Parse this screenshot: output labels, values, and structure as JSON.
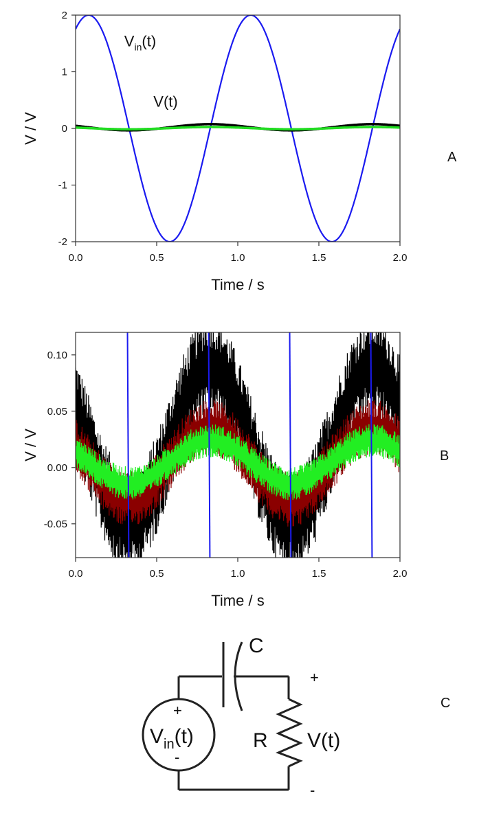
{
  "chart_data": [
    {
      "panel": "A",
      "type": "line",
      "xlabel": "Time / s",
      "ylabel": "V / V",
      "xlim": [
        0.0,
        2.0
      ],
      "ylim": [
        -2,
        2
      ],
      "x_ticks": [
        "0.0",
        "0.5",
        "1.0",
        "1.5",
        "2.0"
      ],
      "y_ticks": [
        "2",
        "1",
        "0",
        "-1",
        "-2"
      ],
      "grid": false,
      "annotations": [
        {
          "text_main": "V",
          "text_sub": "in",
          "text_tail": "(t)",
          "x": 0.3,
          "y": 1.45
        },
        {
          "text_main": "V(t)",
          "text_sub": "",
          "text_tail": "",
          "x": 0.48,
          "y": 0.38
        }
      ],
      "series": [
        {
          "color": "#1b1bf0",
          "kind": "sine",
          "amplitude": 2.0,
          "period_s": 1.0,
          "peak_at_s": 0.08,
          "offset": 0.0,
          "samples": [
            [
              0.0,
              1.86
            ],
            [
              0.08,
              2.0
            ],
            [
              0.33,
              0.0
            ],
            [
              0.58,
              -2.0
            ],
            [
              0.83,
              0.0
            ],
            [
              1.08,
              2.0
            ],
            [
              1.33,
              0.0
            ],
            [
              1.58,
              -2.0
            ],
            [
              1.83,
              0.0
            ],
            [
              2.0,
              1.76
            ]
          ]
        },
        {
          "color": "#000000",
          "kind": "sine",
          "amplitude": 0.055,
          "period_s": 1.0,
          "peak_at_s": 0.83,
          "offset": 0.02,
          "samples": [
            [
              0.0,
              0.09
            ],
            [
              0.33,
              -0.04
            ],
            [
              0.83,
              0.08
            ],
            [
              1.33,
              -0.04
            ],
            [
              1.83,
              0.08
            ],
            [
              2.0,
              0.06
            ]
          ]
        },
        {
          "color": "#22dd22",
          "kind": "sine",
          "amplitude": 0.02,
          "period_s": 1.0,
          "peak_at_s": 0.83,
          "offset": 0.005,
          "samples": [
            [
              0.0,
              0.04
            ],
            [
              0.33,
              -0.015
            ],
            [
              0.83,
              0.025
            ],
            [
              1.33,
              -0.015
            ],
            [
              1.83,
              0.025
            ],
            [
              2.0,
              0.02
            ]
          ]
        }
      ]
    },
    {
      "panel": "B",
      "type": "line",
      "xlabel": "Time / s",
      "ylabel": "V / V",
      "xlim": [
        0.0,
        2.0
      ],
      "ylim": [
        -0.08,
        0.12
      ],
      "x_ticks": [
        "0.0",
        "0.5",
        "1.0",
        "1.5",
        "2.0"
      ],
      "y_ticks": [
        "0.10",
        "0.05",
        "0.00",
        "-0.05"
      ],
      "y_tick_values": [
        0.1,
        0.05,
        0.0,
        -0.05
      ],
      "grid": false,
      "series": [
        {
          "color": "#000000",
          "kind": "noisy-sine",
          "amplitude": 0.07,
          "period_s": 1.0,
          "peak_at_s": 0.83,
          "offset": 0.02,
          "band": 0.045,
          "samples": [
            [
              0.0,
              0.12
            ],
            [
              0.33,
              -0.05
            ],
            [
              0.83,
              0.09
            ],
            [
              1.33,
              -0.05
            ],
            [
              1.83,
              0.09
            ],
            [
              2.0,
              0.04
            ]
          ]
        },
        {
          "color": "#8b0000",
          "kind": "noisy-sine",
          "amplitude": 0.032,
          "period_s": 1.0,
          "peak_at_s": 0.83,
          "offset": 0.004,
          "band": 0.025,
          "samples": [
            [
              0.0,
              0.05
            ],
            [
              0.33,
              -0.025
            ],
            [
              0.83,
              0.036
            ],
            [
              1.33,
              -0.025
            ],
            [
              1.83,
              0.036
            ],
            [
              2.0,
              0.03
            ]
          ]
        },
        {
          "color": "#22ee22",
          "kind": "noisy-sine",
          "amplitude": 0.019,
          "period_s": 1.0,
          "peak_at_s": 0.83,
          "offset": 0.005,
          "band": 0.015,
          "samples": [
            [
              0.0,
              0.03
            ],
            [
              0.33,
              -0.012
            ],
            [
              0.83,
              0.023
            ],
            [
              1.33,
              -0.012
            ],
            [
              1.83,
              0.023
            ],
            [
              2.0,
              0.018
            ]
          ]
        },
        {
          "color": "#1b1bf0",
          "kind": "vertical-crossings",
          "x_values": [
            0.32,
            0.82,
            1.32,
            1.82
          ]
        }
      ]
    }
  ],
  "circuit": {
    "panel": "C",
    "capacitor_label": "C",
    "resistor_label": "R",
    "source_label_main": "V",
    "source_label_sub": "in",
    "source_label_tail": "(t)",
    "output_label": "V(t)",
    "plus": "+",
    "minus": "-"
  }
}
